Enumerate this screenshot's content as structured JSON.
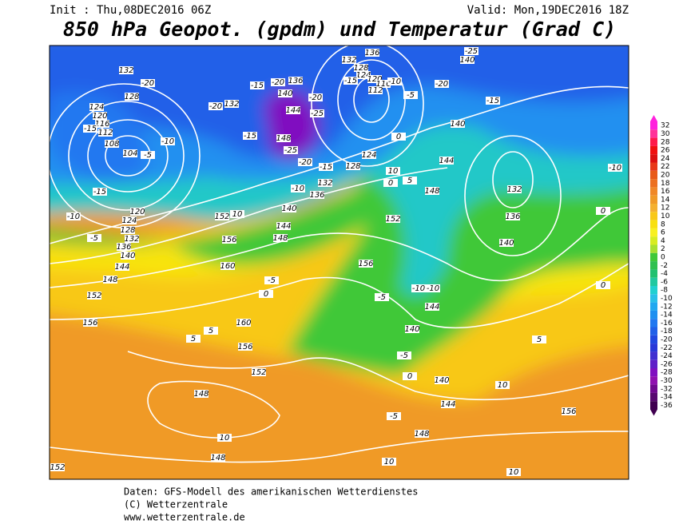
{
  "header": {
    "init": "Init : Thu,08DEC2016 06Z",
    "valid": "Valid: Mon,19DEC2016 18Z",
    "title": "850 hPa Geopot. (gpdm) und Temperatur (Grad C)"
  },
  "map": {
    "contour_labels": [
      132,
      -20,
      128,
      124,
      120,
      116,
      112,
      108,
      104,
      -5,
      -15,
      -10,
      -15,
      -10,
      120,
      124,
      128,
      132,
      136,
      140,
      144,
      148,
      152,
      156,
      -5,
      10,
      152,
      156,
      160,
      -5,
      0,
      160,
      156,
      152,
      148,
      10,
      148,
      152,
      5,
      5,
      -15,
      -20,
      136,
      140,
      144,
      148,
      -25,
      -20,
      -20,
      -25,
      -15,
      128,
      124,
      136,
      132,
      -10,
      140,
      144,
      148,
      -20,
      132,
      -15,
      136,
      132,
      128,
      124,
      120,
      116,
      112,
      -15,
      -10,
      -5,
      0,
      10,
      5,
      0,
      148,
      144,
      140,
      152,
      156,
      -20,
      140,
      -25,
      -15,
      132,
      136,
      140,
      -10,
      0,
      0,
      -10,
      -10,
      -5,
      144,
      140,
      -5,
      0,
      140,
      144,
      148,
      -5,
      10,
      5,
      10,
      10,
      156
    ]
  },
  "colorbar": {
    "levels": [
      32,
      30,
      28,
      26,
      24,
      22,
      20,
      18,
      16,
      14,
      12,
      10,
      8,
      6,
      4,
      2,
      0,
      -2,
      -4,
      -6,
      -8,
      -10,
      -12,
      -14,
      -16,
      -18,
      -20,
      -22,
      -24,
      -26,
      -28,
      -30,
      -32,
      -34,
      -36
    ],
    "colors": [
      "#ff22dd",
      "#ff3399",
      "#ff1a4a",
      "#f01010",
      "#dc1010",
      "#e83818",
      "#e85a18",
      "#ec7020",
      "#f08828",
      "#f09a28",
      "#f4b030",
      "#f8c818",
      "#f8e010",
      "#f8f020",
      "#d8ec20",
      "#a8e030",
      "#40c838",
      "#30c050",
      "#20c070",
      "#20c8a0",
      "#20d0d0",
      "#28c0e8",
      "#20a8f0",
      "#2090f0",
      "#2078f0",
      "#2060e8",
      "#2048e0",
      "#2838d8",
      "#4030d0",
      "#6020c8",
      "#8010c0",
      "#9010b0",
      "#700890",
      "#580870",
      "#400050"
    ]
  },
  "footer": {
    "line1": "Daten: GFS-Modell des amerikanischen Wetterdienstes",
    "line2": "(C) Wetterzentrale",
    "line3": "www.wetterzentrale.de"
  }
}
